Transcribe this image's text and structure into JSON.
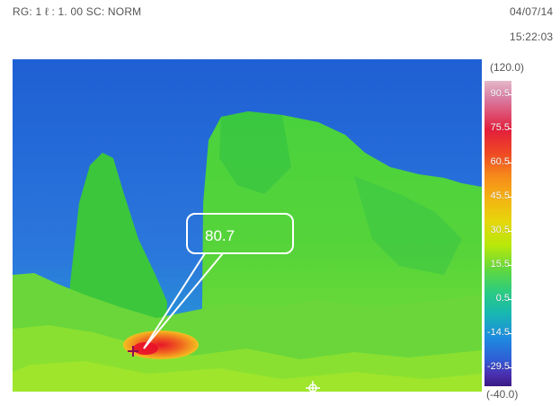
{
  "header": {
    "status": "RG: 1 ℓ : 1. 00 SC: NORM",
    "date": "04/07/14",
    "time": "15:22:03"
  },
  "measurement": {
    "callout_value": "80.7"
  },
  "scale": {
    "max": "(120.0)",
    "min": "(-40.0)",
    "labels": [
      "90.5",
      "75.5",
      "60.5",
      "45.5",
      "30.5",
      "15.5",
      "0.5",
      "-14.5",
      "-29.5"
    ]
  },
  "colors": {
    "sky": "#2f6fd8",
    "rock": "#3ec840",
    "hot_spot": "#e23a2a"
  },
  "icons": {
    "cursor": "crosshair-cursor-icon",
    "spot_marker": "spot-marker-icon"
  }
}
